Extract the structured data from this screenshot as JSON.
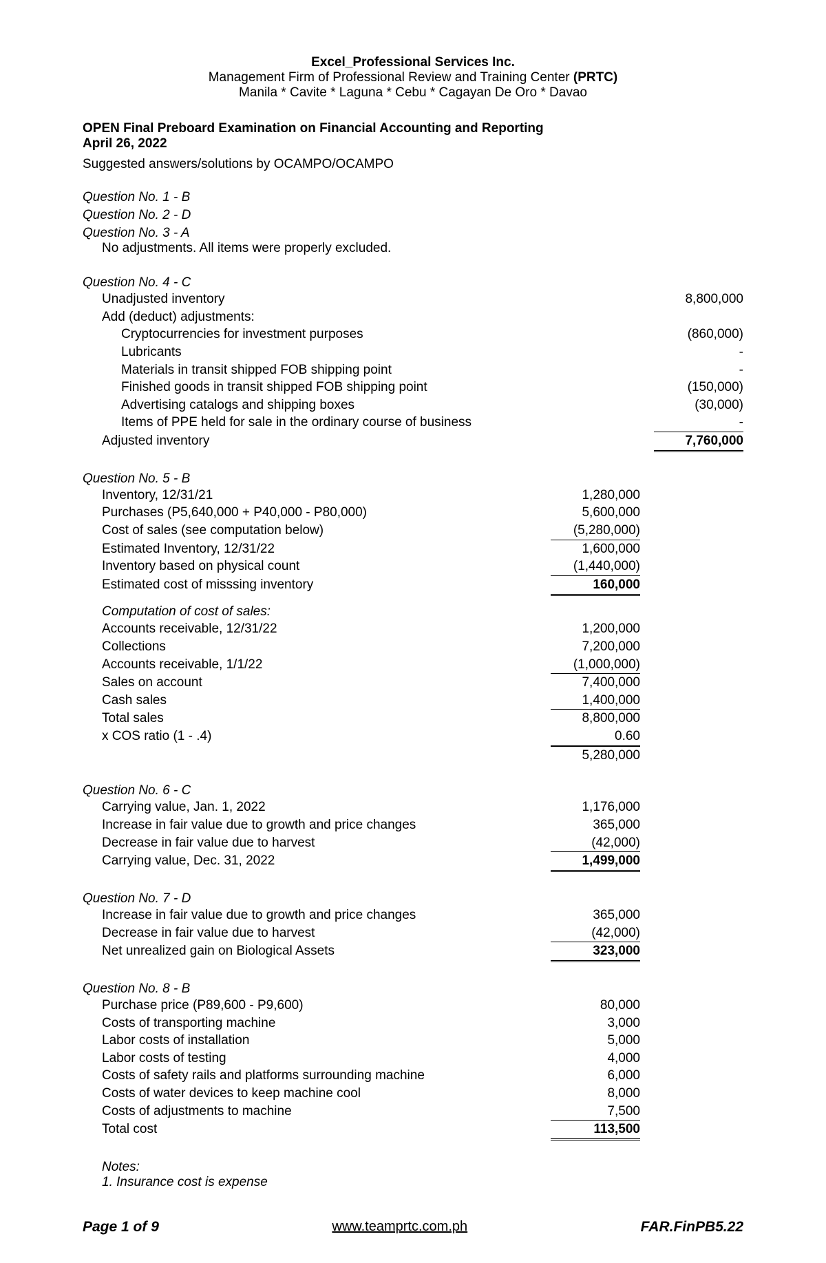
{
  "header": {
    "company": "Excel_Professional Services Inc.",
    "sub1_a": "Management Firm of Professional Review and Training Center ",
    "sub1_b": "(PRTC)",
    "sub2": "Manila * Cavite * Laguna * Cebu * Cagayan De Oro * Davao"
  },
  "title": {
    "line1": "OPEN Final Preboard Examination on Financial Accounting and Reporting",
    "line2": "April 26, 2022",
    "suggested": "Suggested answers/solutions by OCAMPO/OCAMPO"
  },
  "q1": "Question No. 1 - B",
  "q2": "Question No. 2 - D",
  "q3": "Question No. 3 - A",
  "q3note": "No adjustments.  All items were properly excluded.",
  "q4": {
    "head": "Question No. 4 - C",
    "r1": {
      "l": "Unadjusted inventory",
      "v": "8,800,000"
    },
    "r2": {
      "l": "Add (deduct) adjustments:"
    },
    "r3": {
      "l": "Cryptocurrencies for investment purposes",
      "v": "(860,000)"
    },
    "r4": {
      "l": "Lubricants",
      "v": "-"
    },
    "r5": {
      "l": "Materials in transit shipped FOB shipping point",
      "v": "-"
    },
    "r6": {
      "l": "Finished goods in transit shipped FOB shipping point",
      "v": "(150,000)"
    },
    "r7": {
      "l": "Advertising catalogs and shipping boxes",
      "v": "(30,000)"
    },
    "r8": {
      "l": "Items of PPE held for sale in the ordinary course of business",
      "v": "-"
    },
    "r9": {
      "l": "Adjusted inventory",
      "v": "7,760,000"
    }
  },
  "q5": {
    "head": "Question No. 5 - B",
    "a": [
      {
        "l": "Inventory, 12/31/21",
        "v": "1,280,000"
      },
      {
        "l": "Purchases (P5,640,000 + P40,000 - P80,000)",
        "v": "5,600,000"
      },
      {
        "l": "Cost of sales (see computation below)",
        "v": "(5,280,000)",
        "under": true
      },
      {
        "l": "Estimated Inventory, 12/31/22",
        "v": "1,600,000"
      },
      {
        "l": "Inventory based on physical count",
        "v": "(1,440,000)",
        "under": true
      },
      {
        "l": "Estimated cost of misssing inventory",
        "v": "160,000",
        "total": true
      }
    ],
    "compHead": "Computation of cost of sales:",
    "b": [
      {
        "l": "Accounts receivable, 12/31/22",
        "v": "1,200,000"
      },
      {
        "l": "Collections",
        "v": "7,200,000"
      },
      {
        "l": "Accounts receivable, 1/1/22",
        "v": "(1,000,000)",
        "under": true
      },
      {
        "l": "Sales on account",
        "v": "7,400,000"
      },
      {
        "l": "Cash sales",
        "v": "1,400,000",
        "under": true
      },
      {
        "l": "Total sales",
        "v": "8,800,000"
      },
      {
        "l": "x COS ratio (1 - .4)",
        "v": "0.60",
        "under": true
      },
      {
        "l": "",
        "v": "5,280,000",
        "topline": true
      }
    ]
  },
  "q6": {
    "head": "Question No. 6 - C",
    "rows": [
      {
        "l": "Carrying value, Jan. 1, 2022",
        "v": "1,176,000"
      },
      {
        "l": "Increase in fair value due to growth and price changes",
        "v": "365,000"
      },
      {
        "l": "Decrease in fair value due to harvest",
        "v": "(42,000)",
        "under": true
      },
      {
        "l": "Carrying value, Dec. 31, 2022",
        "v": "1,499,000",
        "total": true
      }
    ]
  },
  "q7": {
    "head": "Question No. 7 - D",
    "rows": [
      {
        "l": "Increase in fair value due to growth and price changes",
        "v": "365,000"
      },
      {
        "l": "Decrease in fair value due to harvest",
        "v": "(42,000)",
        "under": true
      },
      {
        "l": "Net unrealized gain on Biological Assets",
        "v": "323,000",
        "total": true
      }
    ]
  },
  "q8": {
    "head": "Question No. 8 - B",
    "rows": [
      {
        "l": "Purchase price (P89,600 - P9,600)",
        "v": "80,000"
      },
      {
        "l": "Costs of transporting machine",
        "v": "3,000"
      },
      {
        "l": "Labor costs of installation",
        "v": "5,000"
      },
      {
        "l": "Labor costs of testing",
        "v": "4,000"
      },
      {
        "l": "Costs of safety rails and platforms surrounding machine",
        "v": "6,000"
      },
      {
        "l": "Costs of water devices to keep machine cool",
        "v": "8,000"
      },
      {
        "l": "Costs of adjustments to machine",
        "v": "7,500",
        "under": true
      },
      {
        "l": "Total cost",
        "v": "113,500",
        "total": true
      }
    ]
  },
  "notes": {
    "head": "Notes:",
    "n1": "1. Insurance cost is expense"
  },
  "footer": {
    "left": "Page 1 of 9",
    "center": "www.teamprtc.com.ph",
    "right": "FAR.FinPB5.22"
  }
}
